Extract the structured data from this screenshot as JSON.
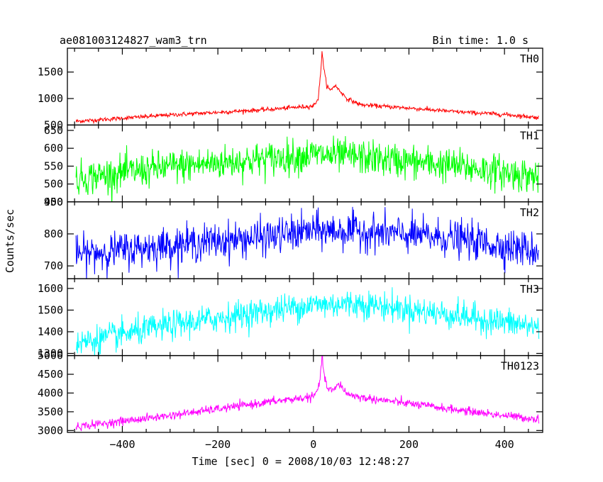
{
  "header": {
    "title": "ae081003124827_wam3_trn",
    "bin_time": "Bin time: 1.0 s"
  },
  "chart_data": {
    "type": "line",
    "xlabel": "Time [sec] 0 = 2008/10/03 12:48:27",
    "ylabel": "Counts/sec",
    "xlim": [
      -515,
      480
    ],
    "x_ticks": [
      -400,
      -200,
      0,
      200,
      400
    ],
    "x_tick_labels": [
      "−400",
      "−200",
      "0",
      "200",
      "400"
    ],
    "data_range": [
      -497,
      472
    ],
    "bin_time_s": 1.0,
    "panels": [
      {
        "name": "TH0",
        "color": "#ff0000",
        "ylim": [
          500,
          1950
        ],
        "y_ticks": [
          500,
          1000,
          1500
        ],
        "y_tick_labels": [
          "500",
          "1000",
          "1500"
        ],
        "baseline": [
          [
            -497,
            570
          ],
          [
            -300,
            690
          ],
          [
            -100,
            790
          ],
          [
            0,
            860
          ],
          [
            10,
            1000
          ],
          [
            15,
            1450
          ],
          [
            18,
            1900
          ],
          [
            22,
            1550
          ],
          [
            28,
            1250
          ],
          [
            35,
            1150
          ],
          [
            45,
            1250
          ],
          [
            55,
            1150
          ],
          [
            70,
            1000
          ],
          [
            100,
            880
          ],
          [
            200,
            820
          ],
          [
            300,
            750
          ],
          [
            400,
            700
          ],
          [
            472,
            640
          ]
        ],
        "noise_sd": 20
      },
      {
        "name": "TH1",
        "color": "#00ff00",
        "ylim": [
          450,
          665
        ],
        "y_ticks": [
          450,
          500,
          550,
          600,
          650
        ],
        "y_tick_labels": [
          "450",
          "500",
          "550",
          "600",
          "650"
        ],
        "baseline": [
          [
            -497,
            515
          ],
          [
            -300,
            548
          ],
          [
            -100,
            570
          ],
          [
            0,
            582
          ],
          [
            100,
            575
          ],
          [
            300,
            550
          ],
          [
            472,
            520
          ]
        ],
        "noise_sd": 24
      },
      {
        "name": "TH2",
        "color": "#0000ff",
        "ylim": [
          660,
          900
        ],
        "y_ticks": [
          700,
          800,
          900
        ],
        "y_tick_labels": [
          "700",
          "800",
          "900"
        ],
        "baseline": [
          [
            -497,
            735
          ],
          [
            -300,
            765
          ],
          [
            -100,
            790
          ],
          [
            0,
            810
          ],
          [
            100,
            808
          ],
          [
            300,
            785
          ],
          [
            472,
            745
          ]
        ],
        "noise_sd": 28
      },
      {
        "name": "TH3",
        "color": "#00ffff",
        "ylim": [
          1290,
          1645
        ],
        "y_ticks": [
          1300,
          1400,
          1500,
          1600
        ],
        "y_tick_labels": [
          "1300",
          "1400",
          "1500",
          "1600"
        ],
        "baseline": [
          [
            -497,
            1345
          ],
          [
            -300,
            1430
          ],
          [
            -100,
            1495
          ],
          [
            0,
            1525
          ],
          [
            100,
            1530
          ],
          [
            300,
            1475
          ],
          [
            472,
            1420
          ]
        ],
        "noise_sd": 33
      },
      {
        "name": "TH0123",
        "color": "#ff00ff",
        "ylim": [
          2950,
          5000
        ],
        "y_ticks": [
          3000,
          3500,
          4000,
          4500,
          5000
        ],
        "y_tick_labels": [
          "3000",
          "3500",
          "4000",
          "4500",
          "5000"
        ],
        "baseline": [
          [
            -497,
            3100
          ],
          [
            -300,
            3400
          ],
          [
            -100,
            3750
          ],
          [
            0,
            3900
          ],
          [
            10,
            4100
          ],
          [
            15,
            4500
          ],
          [
            18,
            4950
          ],
          [
            22,
            4550
          ],
          [
            28,
            4150
          ],
          [
            40,
            4050
          ],
          [
            55,
            4250
          ],
          [
            70,
            3980
          ],
          [
            100,
            3880
          ],
          [
            200,
            3720
          ],
          [
            300,
            3550
          ],
          [
            400,
            3400
          ],
          [
            472,
            3300
          ]
        ],
        "noise_sd": 55
      }
    ]
  }
}
